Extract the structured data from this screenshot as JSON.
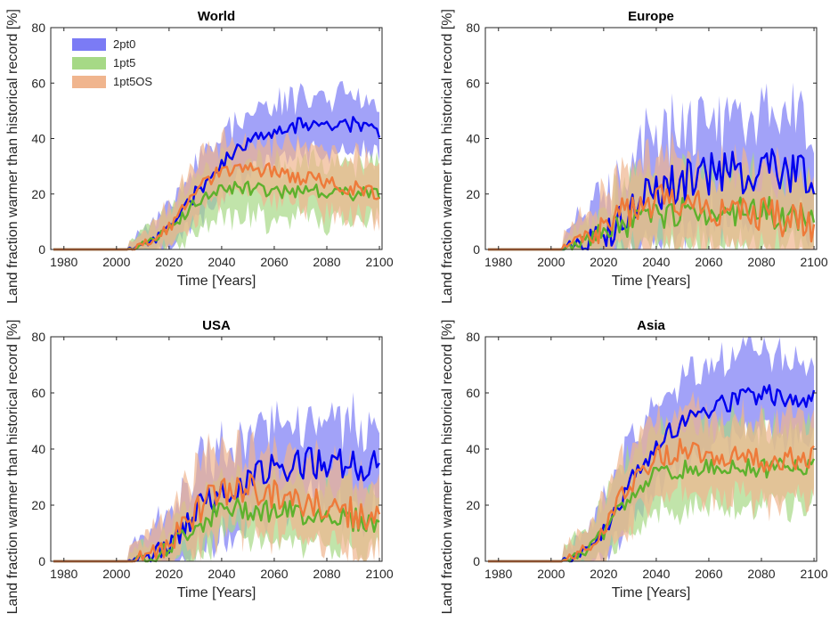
{
  "colors": {
    "2pt0": {
      "line": "#0000ee",
      "band": "#7b7bf5"
    },
    "1pt5": {
      "line": "#5eb12d",
      "band": "#a6d986"
    },
    "1pt5OS": {
      "line": "#ee7a3a",
      "band": "#f0b58e"
    }
  },
  "chart_data": [
    {
      "type": "line",
      "title": "World",
      "xlabel": "Time [Years]",
      "ylabel": "Land fraction warmer than historical record [%]",
      "xlim": [
        1975,
        2101
      ],
      "ylim": [
        0,
        80
      ],
      "xticks": [
        1980,
        2000,
        2020,
        2040,
        2060,
        2080,
        2100
      ],
      "yticks": [
        0,
        20,
        40,
        60,
        80
      ],
      "legend": {
        "location": "top-left",
        "entries": [
          "2pt0",
          "1pt5",
          "1pt5OS"
        ]
      },
      "onset": 2005,
      "series": [
        {
          "name": "2pt0",
          "knots": [
            [
              2005,
              0
            ],
            [
              2010,
              2
            ],
            [
              2015,
              4
            ],
            [
              2020,
              8
            ],
            [
              2025,
              14
            ],
            [
              2030,
              20
            ],
            [
              2035,
              25
            ],
            [
              2040,
              31
            ],
            [
              2045,
              36
            ],
            [
              2050,
              39
            ],
            [
              2055,
              41
            ],
            [
              2060,
              43
            ],
            [
              2070,
              45
            ],
            [
              2080,
              46
            ],
            [
              2090,
              45
            ],
            [
              2100,
              43
            ]
          ],
          "noise": 2.0,
          "band": 10,
          "seed": 11
        },
        {
          "name": "1pt5",
          "knots": [
            [
              2005,
              0
            ],
            [
              2010,
              2
            ],
            [
              2015,
              4
            ],
            [
              2020,
              7
            ],
            [
              2025,
              12
            ],
            [
              2030,
              17
            ],
            [
              2035,
              20
            ],
            [
              2040,
              22
            ],
            [
              2050,
              22
            ],
            [
              2060,
              21
            ],
            [
              2070,
              21
            ],
            [
              2080,
              21
            ],
            [
              2090,
              20
            ],
            [
              2100,
              20
            ]
          ],
          "noise": 1.8,
          "band": 10,
          "seed": 12
        },
        {
          "name": "1pt5OS",
          "knots": [
            [
              2005,
              0
            ],
            [
              2010,
              2
            ],
            [
              2015,
              4
            ],
            [
              2020,
              8
            ],
            [
              2025,
              14
            ],
            [
              2030,
              20
            ],
            [
              2035,
              25
            ],
            [
              2040,
              28
            ],
            [
              2045,
              30
            ],
            [
              2050,
              30
            ],
            [
              2060,
              28
            ],
            [
              2070,
              26
            ],
            [
              2080,
              25
            ],
            [
              2090,
              22
            ],
            [
              2100,
              20
            ]
          ],
          "noise": 2.0,
          "band": 10,
          "seed": 13
        }
      ]
    },
    {
      "type": "line",
      "title": "Europe",
      "xlabel": "Time [Years]",
      "ylabel": "Land fraction warmer than historical record [%]",
      "xlim": [
        1975,
        2101
      ],
      "ylim": [
        0,
        80
      ],
      "xticks": [
        1980,
        2000,
        2020,
        2040,
        2060,
        2080,
        2100
      ],
      "yticks": [
        0,
        20,
        40,
        60,
        80
      ],
      "onset": 2005,
      "series": [
        {
          "name": "2pt0",
          "knots": [
            [
              2005,
              0
            ],
            [
              2010,
              1
            ],
            [
              2015,
              3
            ],
            [
              2020,
              5
            ],
            [
              2025,
              8
            ],
            [
              2030,
              14
            ],
            [
              2035,
              19
            ],
            [
              2040,
              22
            ],
            [
              2050,
              25
            ],
            [
              2060,
              27
            ],
            [
              2070,
              28
            ],
            [
              2080,
              28
            ],
            [
              2090,
              29
            ],
            [
              2100,
              24
            ]
          ],
          "noise": 6.0,
          "band": 18,
          "seed": 21
        },
        {
          "name": "1pt5",
          "knots": [
            [
              2005,
              0
            ],
            [
              2010,
              2
            ],
            [
              2015,
              4
            ],
            [
              2020,
              7
            ],
            [
              2030,
              10
            ],
            [
              2040,
              13
            ],
            [
              2050,
              13
            ],
            [
              2060,
              14
            ],
            [
              2070,
              13
            ],
            [
              2080,
              14
            ],
            [
              2090,
              12
            ],
            [
              2100,
              11
            ]
          ],
          "noise": 4.0,
          "band": 13,
          "seed": 22
        },
        {
          "name": "1pt5OS",
          "knots": [
            [
              2005,
              0
            ],
            [
              2010,
              3
            ],
            [
              2015,
              5
            ],
            [
              2020,
              8
            ],
            [
              2030,
              14
            ],
            [
              2040,
              18
            ],
            [
              2050,
              19
            ],
            [
              2060,
              16
            ],
            [
              2070,
              14
            ],
            [
              2080,
              13
            ],
            [
              2090,
              11
            ],
            [
              2100,
              9
            ]
          ],
          "noise": 5.0,
          "band": 15,
          "seed": 23
        }
      ]
    },
    {
      "type": "line",
      "title": "USA",
      "xlabel": "Time [Years]",
      "ylabel": "Land fraction warmer than historical record [%]",
      "xlim": [
        1975,
        2101
      ],
      "ylim": [
        0,
        80
      ],
      "xticks": [
        1980,
        2000,
        2020,
        2040,
        2060,
        2080,
        2100
      ],
      "yticks": [
        0,
        20,
        40,
        60,
        80
      ],
      "onset": 2005,
      "series": [
        {
          "name": "2pt0",
          "knots": [
            [
              2005,
              0
            ],
            [
              2010,
              2
            ],
            [
              2015,
              3
            ],
            [
              2020,
              5
            ],
            [
              2025,
              12
            ],
            [
              2030,
              18
            ],
            [
              2035,
              22
            ],
            [
              2040,
              25
            ],
            [
              2050,
              30
            ],
            [
              2060,
              33
            ],
            [
              2070,
              35
            ],
            [
              2080,
              35
            ],
            [
              2090,
              34
            ],
            [
              2100,
              35
            ]
          ],
          "noise": 4.0,
          "band": 15,
          "seed": 31
        },
        {
          "name": "1pt5",
          "knots": [
            [
              2005,
              0
            ],
            [
              2010,
              1
            ],
            [
              2015,
              2
            ],
            [
              2020,
              5
            ],
            [
              2030,
              13
            ],
            [
              2040,
              18
            ],
            [
              2050,
              19
            ],
            [
              2060,
              18
            ],
            [
              2070,
              17
            ],
            [
              2080,
              17
            ],
            [
              2090,
              15
            ],
            [
              2100,
              13
            ]
          ],
          "noise": 3.0,
          "band": 10,
          "seed": 32
        },
        {
          "name": "1pt5OS",
          "knots": [
            [
              2005,
              0
            ],
            [
              2010,
              2
            ],
            [
              2015,
              3
            ],
            [
              2020,
              6
            ],
            [
              2030,
              18
            ],
            [
              2040,
              25
            ],
            [
              2050,
              26
            ],
            [
              2060,
              24
            ],
            [
              2070,
              21
            ],
            [
              2080,
              20
            ],
            [
              2090,
              17
            ],
            [
              2100,
              14
            ]
          ],
          "noise": 4.0,
          "band": 14,
          "seed": 33
        }
      ]
    },
    {
      "type": "line",
      "title": "Asia",
      "xlabel": "Time [Years]",
      "ylabel": "Land fraction warmer than historical record [%]",
      "xlim": [
        1975,
        2101
      ],
      "ylim": [
        0,
        80
      ],
      "xticks": [
        1980,
        2000,
        2020,
        2040,
        2060,
        2080,
        2100
      ],
      "yticks": [
        0,
        20,
        40,
        60,
        80
      ],
      "onset": 2005,
      "series": [
        {
          "name": "2pt0",
          "knots": [
            [
              2005,
              0
            ],
            [
              2010,
              2
            ],
            [
              2015,
              5
            ],
            [
              2020,
              10
            ],
            [
              2025,
              18
            ],
            [
              2030,
              27
            ],
            [
              2035,
              34
            ],
            [
              2040,
              40
            ],
            [
              2045,
              46
            ],
            [
              2050,
              50
            ],
            [
              2060,
              54
            ],
            [
              2070,
              57
            ],
            [
              2080,
              59
            ],
            [
              2090,
              58
            ],
            [
              2100,
              59
            ]
          ],
          "noise": 3.0,
          "band": 14,
          "seed": 41
        },
        {
          "name": "1pt5",
          "knots": [
            [
              2005,
              0
            ],
            [
              2010,
              2
            ],
            [
              2015,
              5
            ],
            [
              2020,
              10
            ],
            [
              2025,
              18
            ],
            [
              2030,
              24
            ],
            [
              2035,
              28
            ],
            [
              2040,
              31
            ],
            [
              2050,
              33
            ],
            [
              2060,
              33
            ],
            [
              2070,
              34
            ],
            [
              2080,
              33
            ],
            [
              2090,
              34
            ],
            [
              2100,
              34
            ]
          ],
          "noise": 2.5,
          "band": 14,
          "seed": 42
        },
        {
          "name": "1pt5OS",
          "knots": [
            [
              2005,
              0
            ],
            [
              2010,
              3
            ],
            [
              2015,
              6
            ],
            [
              2020,
              12
            ],
            [
              2025,
              20
            ],
            [
              2030,
              28
            ],
            [
              2035,
              33
            ],
            [
              2040,
              37
            ],
            [
              2050,
              40
            ],
            [
              2060,
              39
            ],
            [
              2070,
              37
            ],
            [
              2080,
              36
            ],
            [
              2090,
              37
            ],
            [
              2100,
              37
            ]
          ],
          "noise": 3.0,
          "band": 14,
          "seed": 43
        }
      ]
    }
  ]
}
